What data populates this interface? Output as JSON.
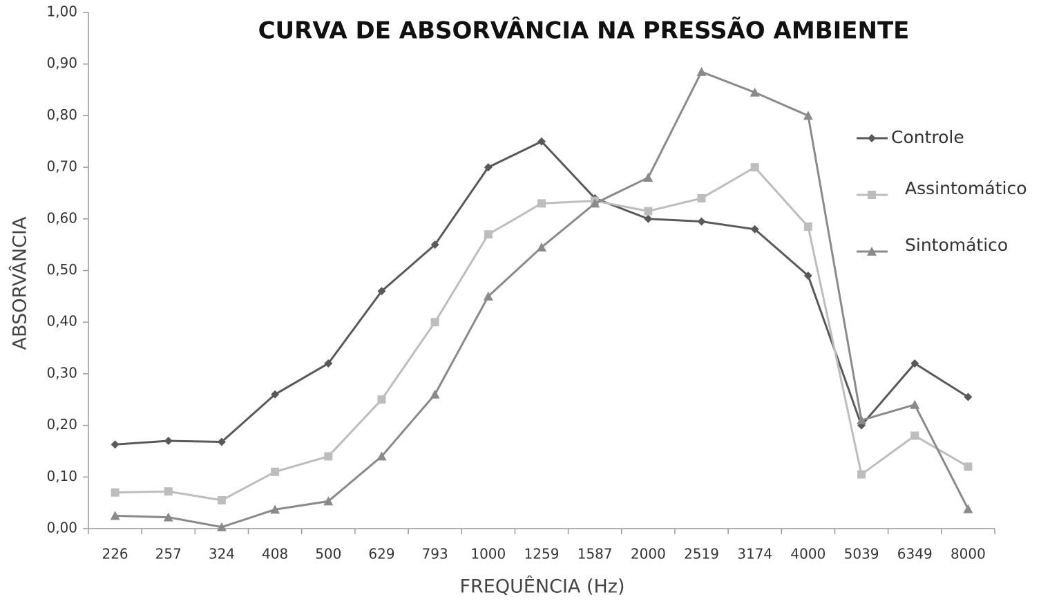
{
  "chart_data": {
    "type": "line",
    "title": "CURVA DE ABSORVÂNCIA NA PRESSÃO AMBIENTE",
    "x_label": "FREQUÊNCIA  (Hz)",
    "y_label": "ABSORVÂNCIA",
    "categories": [
      "226",
      "257",
      "324",
      "408",
      "500",
      "629",
      "793",
      "1000",
      "1259",
      "1587",
      "2000",
      "2519",
      "3174",
      "4000",
      "5039",
      "6349",
      "8000"
    ],
    "series": [
      {
        "name": "Controle",
        "color": "#595959",
        "marker": "diamond",
        "values": [
          0.163,
          0.17,
          0.168,
          0.26,
          0.32,
          0.46,
          0.55,
          0.7,
          0.75,
          0.64,
          0.6,
          0.595,
          0.58,
          0.49,
          0.2,
          0.32,
          0.255
        ]
      },
      {
        "name": "Assintomático",
        "color": "#bdbdbd",
        "marker": "square",
        "values": [
          0.07,
          0.072,
          0.055,
          0.11,
          0.14,
          0.25,
          0.4,
          0.57,
          0.63,
          0.635,
          0.615,
          0.64,
          0.7,
          0.585,
          0.105,
          0.18,
          0.12
        ]
      },
      {
        "name": "Sintomático",
        "color": "#8a8a8a",
        "marker": "triangle",
        "values": [
          0.025,
          0.022,
          0.003,
          0.037,
          0.053,
          0.14,
          0.26,
          0.45,
          0.545,
          0.63,
          0.68,
          0.885,
          0.845,
          0.8,
          0.21,
          0.24,
          0.038
        ]
      }
    ],
    "ylim": [
      0,
      1
    ],
    "yticks": [
      {
        "value": 0,
        "label": "0,00"
      },
      {
        "value": 0.1,
        "label": "0,10"
      },
      {
        "value": 0.2,
        "label": "0,20"
      },
      {
        "value": 0.3,
        "label": "0,30"
      },
      {
        "value": 0.4,
        "label": "0,40"
      },
      {
        "value": 0.5,
        "label": "0,50"
      },
      {
        "value": 0.6,
        "label": "0,60"
      },
      {
        "value": 0.7,
        "label": "0,70"
      },
      {
        "value": 0.8,
        "label": "0,80"
      },
      {
        "value": 0.9,
        "label": "0,90"
      },
      {
        "value": 1,
        "label": "1,00"
      }
    ],
    "grid": false,
    "legend": "right"
  }
}
